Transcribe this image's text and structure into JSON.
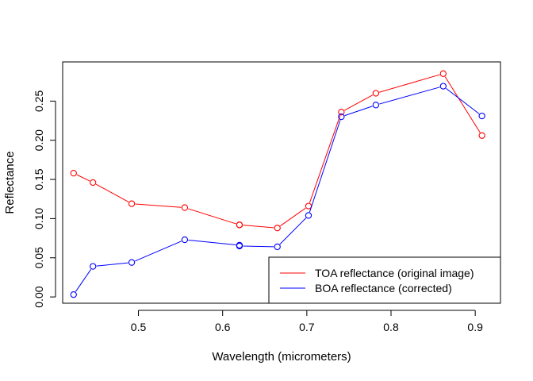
{
  "chart_data": {
    "type": "line",
    "xlabel": "Wavelength (micrometers)",
    "ylabel": "Reflectance",
    "xlim": [
      0.41,
      0.93
    ],
    "ylim": [
      -0.008,
      0.3
    ],
    "xticks": [
      0.5,
      0.6,
      0.7,
      0.8,
      0.9
    ],
    "xtick_labels": [
      "0.5",
      "0.6",
      "0.7",
      "0.8",
      "0.9"
    ],
    "yticks": [
      0.0,
      0.05,
      0.1,
      0.15,
      0.2,
      0.25
    ],
    "ytick_labels": [
      "0.00",
      "0.05",
      "0.10",
      "0.15",
      "0.20",
      "0.25"
    ],
    "grid": false,
    "legend_position": "bottom-right",
    "x": [
      0.423,
      0.446,
      0.492,
      0.555,
      0.62,
      0.62,
      0.665,
      0.702,
      0.741,
      0.782,
      0.862,
      0.908
    ],
    "series": [
      {
        "name": "TOA reflectance (original image)",
        "color": "#ff0000",
        "values": [
          0.158,
          0.146,
          0.119,
          0.114,
          0.092,
          0.092,
          0.088,
          0.116,
          0.236,
          0.26,
          0.285,
          0.206
        ]
      },
      {
        "name": "BOA reflectance (corrected)",
        "color": "#0000ff",
        "values": [
          0.003,
          0.039,
          0.044,
          0.073,
          0.066,
          0.065,
          0.064,
          0.104,
          0.23,
          0.245,
          0.269,
          0.231
        ]
      }
    ]
  }
}
